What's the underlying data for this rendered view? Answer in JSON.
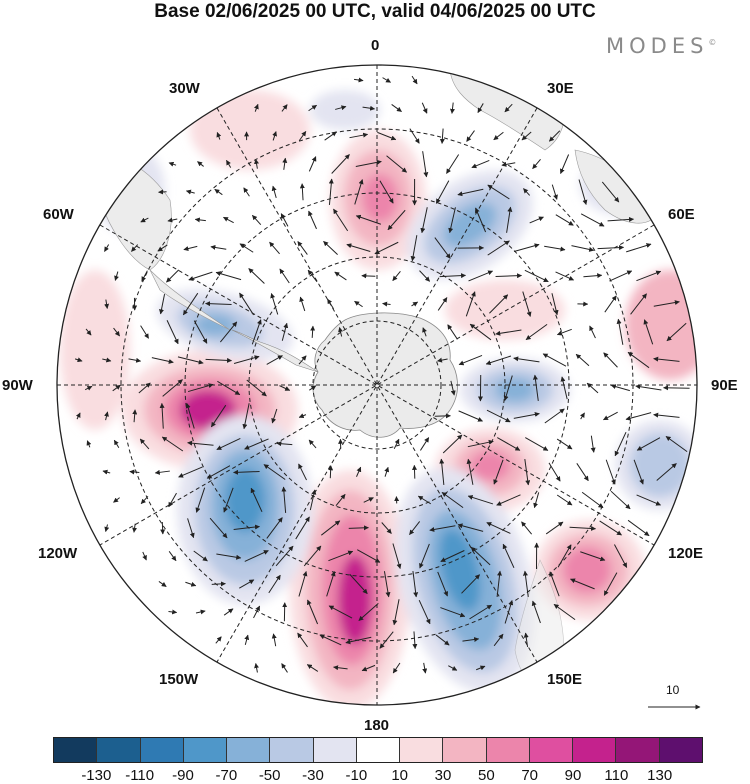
{
  "title": "Base 02/06/2025 00 UTC, valid 04/06/2025 00 UTC",
  "brand": "MODES",
  "brand_mark": "©",
  "map": {
    "projection": "south polar stereographic",
    "field": "anomaly (shaded) with wind vectors",
    "longitude_labels": [
      "0",
      "30E",
      "60E",
      "90E",
      "120E",
      "150E",
      "180",
      "150W",
      "120W",
      "90W",
      "60W",
      "30W"
    ],
    "vector_reference_label": "10"
  },
  "colorbar": {
    "colors": [
      "#123a5e",
      "#1c5f8f",
      "#2f7ab3",
      "#4f97c9",
      "#86b1d8",
      "#b9c9e4",
      "#e3e4f1",
      "#ffffff",
      "#f9dde0",
      "#f3b5c2",
      "#ec85ab",
      "#df4fa0",
      "#c4228d",
      "#941677",
      "#5e0f6e"
    ],
    "tick_labels": [
      "-130",
      "-110",
      "-90",
      "-70",
      "-50",
      "-30",
      "-10",
      "10",
      "30",
      "50",
      "70",
      "90",
      "110",
      "130"
    ]
  }
}
